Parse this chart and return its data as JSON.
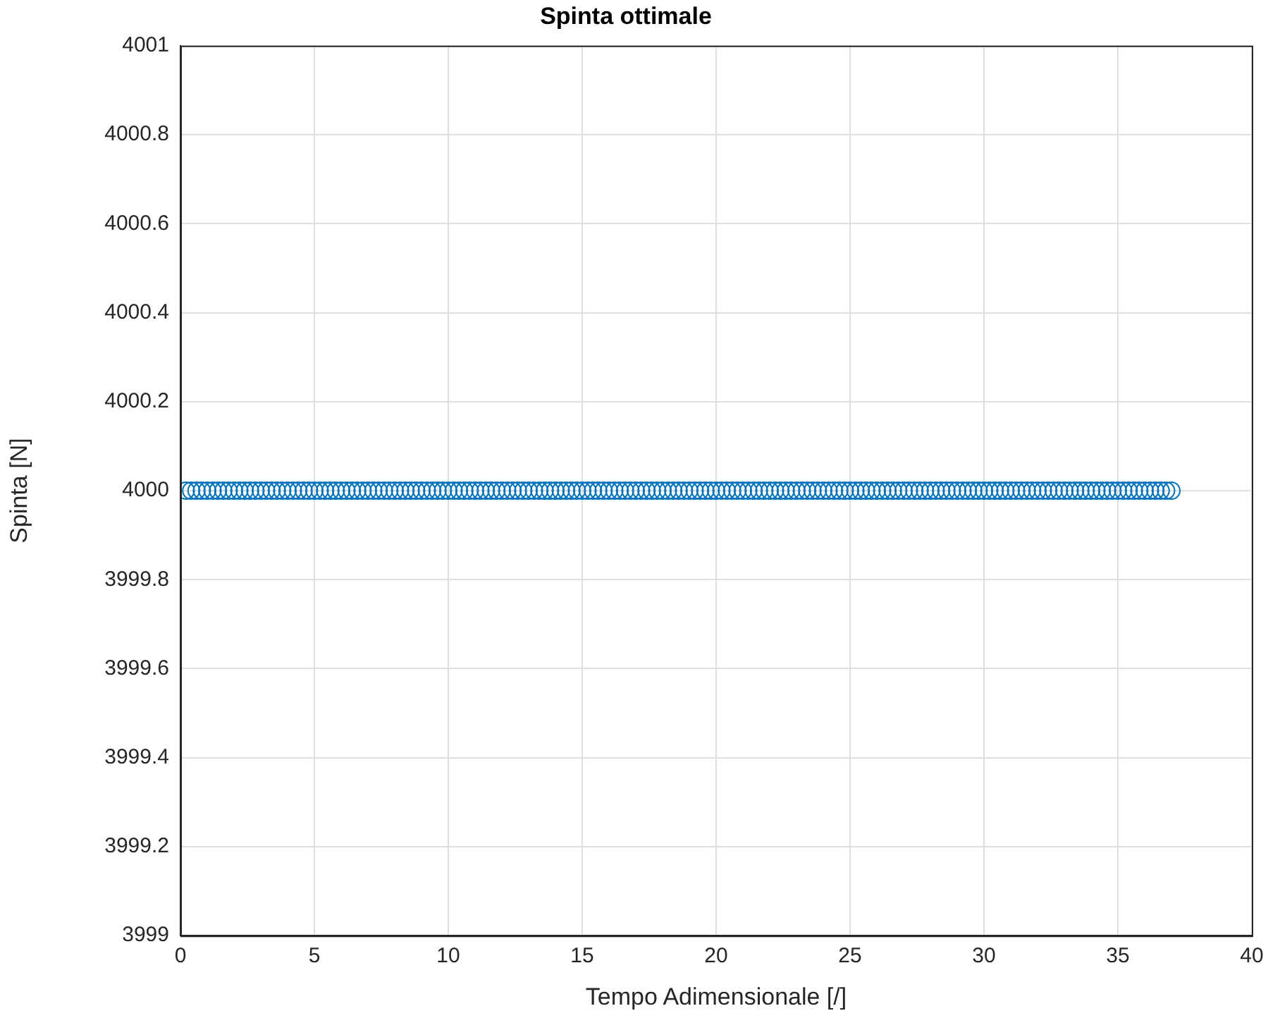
{
  "chart_data": {
    "type": "scatter",
    "title": "Spinta ottimale",
    "xlabel": "Tempo Adimensionale [/]",
    "ylabel": "Spinta [N]",
    "x": [
      0.2,
      0.4,
      0.6,
      0.8,
      1.0,
      1.2,
      1.4,
      1.6,
      1.8,
      2.0,
      2.2,
      2.4,
      2.6,
      2.8,
      3.0,
      3.2,
      3.4,
      3.6,
      3.8,
      4.0,
      4.2,
      4.4,
      4.6,
      4.8,
      5.0,
      5.2,
      5.4,
      5.6,
      5.8,
      6.0,
      6.2,
      6.4,
      6.6,
      6.8,
      7.0,
      7.2,
      7.4,
      7.6,
      7.8,
      8.0,
      8.2,
      8.4,
      8.6,
      8.8,
      9.0,
      9.2,
      9.4,
      9.6,
      9.8,
      10.0,
      10.2,
      10.4,
      10.6,
      10.8,
      11.0,
      11.2,
      11.4,
      11.6,
      11.8,
      12.0,
      12.2,
      12.4,
      12.6,
      12.8,
      13.0,
      13.2,
      13.4,
      13.6,
      13.8,
      14.0,
      14.2,
      14.4,
      14.6,
      14.8,
      15.0,
      15.2,
      15.4,
      15.6,
      15.8,
      16.0,
      16.2,
      16.4,
      16.6,
      16.8,
      17.0,
      17.2,
      17.4,
      17.6,
      17.8,
      18.0,
      18.2,
      18.4,
      18.6,
      18.8,
      19.0,
      19.2,
      19.4,
      19.6,
      19.8,
      20.0,
      20.2,
      20.4,
      20.6,
      20.8,
      21.0,
      21.2,
      21.4,
      21.6,
      21.8,
      22.0,
      22.2,
      22.4,
      22.6,
      22.8,
      23.0,
      23.2,
      23.4,
      23.6,
      23.8,
      24.0,
      24.2,
      24.4,
      24.6,
      24.8,
      25.0,
      25.2,
      25.4,
      25.6,
      25.8,
      26.0,
      26.2,
      26.4,
      26.6,
      26.8,
      27.0,
      27.2,
      27.4,
      27.6,
      27.8,
      28.0,
      28.2,
      28.4,
      28.6,
      28.8,
      29.0,
      29.2,
      29.4,
      29.6,
      29.8,
      30.0,
      30.2,
      30.4,
      30.6,
      30.8,
      31.0,
      31.2,
      31.4,
      31.6,
      31.8,
      32.0,
      32.2,
      32.4,
      32.6,
      32.8,
      33.0,
      33.2,
      33.4,
      33.6,
      33.8,
      34.0,
      34.2,
      34.4,
      34.6,
      34.8,
      35.0,
      35.2,
      35.4,
      35.6,
      35.8,
      36.0,
      36.2,
      36.4,
      36.6,
      36.8,
      37.0
    ],
    "values": [
      4000,
      4000,
      4000,
      4000,
      4000,
      4000,
      4000,
      4000,
      4000,
      4000,
      4000,
      4000,
      4000,
      4000,
      4000,
      4000,
      4000,
      4000,
      4000,
      4000,
      4000,
      4000,
      4000,
      4000,
      4000,
      4000,
      4000,
      4000,
      4000,
      4000,
      4000,
      4000,
      4000,
      4000,
      4000,
      4000,
      4000,
      4000,
      4000,
      4000,
      4000,
      4000,
      4000,
      4000,
      4000,
      4000,
      4000,
      4000,
      4000,
      4000,
      4000,
      4000,
      4000,
      4000,
      4000,
      4000,
      4000,
      4000,
      4000,
      4000,
      4000,
      4000,
      4000,
      4000,
      4000,
      4000,
      4000,
      4000,
      4000,
      4000,
      4000,
      4000,
      4000,
      4000,
      4000,
      4000,
      4000,
      4000,
      4000,
      4000,
      4000,
      4000,
      4000,
      4000,
      4000,
      4000,
      4000,
      4000,
      4000,
      4000,
      4000,
      4000,
      4000,
      4000,
      4000,
      4000,
      4000,
      4000,
      4000,
      4000,
      4000,
      4000,
      4000,
      4000,
      4000,
      4000,
      4000,
      4000,
      4000,
      4000,
      4000,
      4000,
      4000,
      4000,
      4000,
      4000,
      4000,
      4000,
      4000,
      4000,
      4000,
      4000,
      4000,
      4000,
      4000,
      4000,
      4000,
      4000,
      4000,
      4000,
      4000,
      4000,
      4000,
      4000,
      4000,
      4000,
      4000,
      4000,
      4000,
      4000,
      4000,
      4000,
      4000,
      4000,
      4000,
      4000,
      4000,
      4000,
      4000,
      4000,
      4000,
      4000,
      4000,
      4000,
      4000,
      4000,
      4000,
      4000,
      4000,
      4000,
      4000,
      4000,
      4000,
      4000,
      4000,
      4000,
      4000,
      4000,
      4000,
      4000,
      4000,
      4000,
      4000,
      4000,
      4000,
      4000,
      4000,
      4000,
      4000,
      4000,
      4000,
      4000,
      4000,
      4000,
      4000
    ],
    "color": "#0072bd",
    "marker": "circle",
    "xlim": [
      0,
      40
    ],
    "xticks": [
      0,
      5,
      10,
      15,
      20,
      25,
      30,
      35,
      40
    ],
    "ylim": [
      3999,
      4001
    ],
    "yticks": [
      3999,
      3999.2,
      3999.4,
      3999.6,
      3999.8,
      4000,
      4000.2,
      4000.4,
      4000.6,
      4000.8,
      4001
    ],
    "grid": true
  }
}
